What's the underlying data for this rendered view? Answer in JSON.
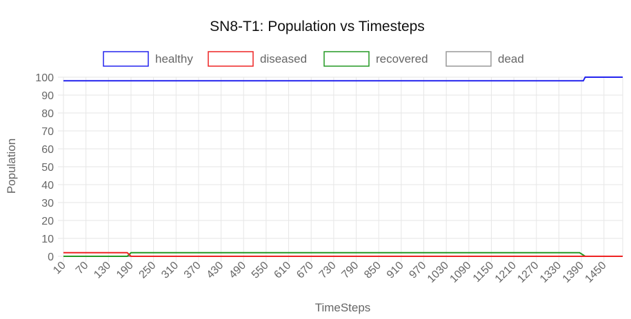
{
  "chart_data": {
    "type": "line",
    "title": "SN8-T1: Population vs Timesteps",
    "xlabel": "TimeSteps",
    "ylabel": "Population",
    "ylim": [
      0,
      100
    ],
    "yticks": [
      0,
      10,
      20,
      30,
      40,
      50,
      60,
      70,
      80,
      90,
      100
    ],
    "xlim": [
      10,
      1500
    ],
    "xticks": [
      10,
      70,
      130,
      190,
      250,
      310,
      370,
      430,
      490,
      550,
      610,
      670,
      730,
      790,
      850,
      910,
      970,
      1030,
      1090,
      1150,
      1210,
      1270,
      1330,
      1390,
      1450
    ],
    "grid": true,
    "legend_position": "top",
    "series": [
      {
        "name": "healthy",
        "color": "#2222ee",
        "x": [
          10,
          1385,
          1395,
          1400,
          1500
        ],
        "y": [
          98,
          98,
          98,
          100,
          100
        ]
      },
      {
        "name": "diseased",
        "color": "#ee2222",
        "x": [
          10,
          180,
          190,
          1500
        ],
        "y": [
          2,
          2,
          0,
          0
        ]
      },
      {
        "name": "recovered",
        "color": "#229922",
        "x": [
          10,
          180,
          190,
          1385,
          1400,
          1500
        ],
        "y": [
          0,
          0,
          2,
          2,
          0,
          0
        ]
      },
      {
        "name": "dead",
        "color": "#999999",
        "x": [
          10,
          1500
        ],
        "y": [
          0,
          0
        ]
      }
    ]
  }
}
